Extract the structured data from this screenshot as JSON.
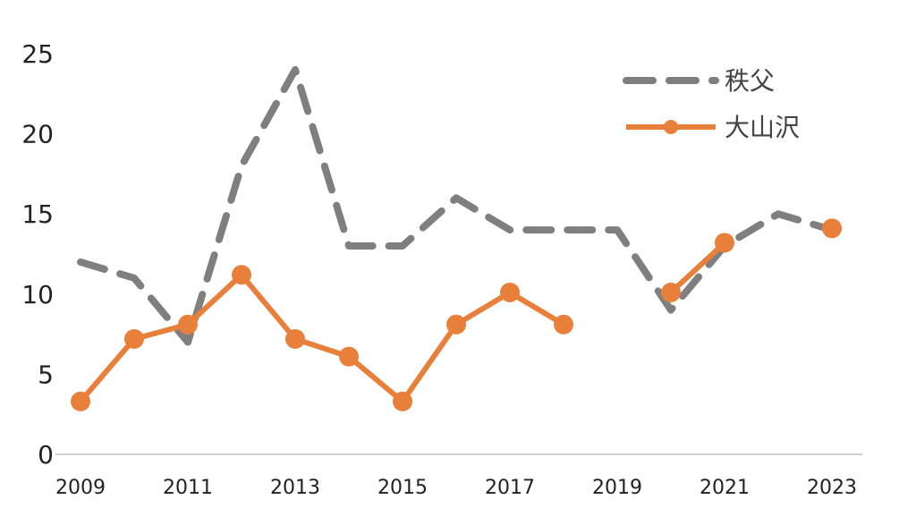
{
  "chart_data": {
    "type": "line",
    "title": "",
    "xlabel": "",
    "ylabel": "",
    "x": [
      2009,
      2010,
      2011,
      2012,
      2013,
      2014,
      2015,
      2016,
      2017,
      2018,
      2019,
      2020,
      2021,
      2022,
      2023
    ],
    "x_tick_labels": [
      "2009",
      "2011",
      "2013",
      "2015",
      "2017",
      "2019",
      "2021",
      "2023"
    ],
    "y_tick_labels": [
      "0",
      "5",
      "10",
      "15",
      "20",
      "25"
    ],
    "ylim": [
      0,
      25
    ],
    "grid": false,
    "legend_position": "top-right",
    "series": [
      {
        "name": "秩父",
        "style": "dashed",
        "color": "#7f7f7f",
        "markers": false,
        "values": [
          12,
          11,
          7,
          18,
          24,
          13,
          13,
          16,
          14,
          14,
          14,
          9,
          13,
          15,
          14
        ]
      },
      {
        "name": "大山沢",
        "style": "solid",
        "color": "#e8803c",
        "markers": true,
        "values": [
          3.3,
          7.2,
          8.1,
          11.2,
          7.2,
          6.1,
          3.3,
          8.1,
          10.1,
          8.1,
          null,
          10.1,
          13.2,
          null,
          14.1
        ]
      }
    ]
  }
}
